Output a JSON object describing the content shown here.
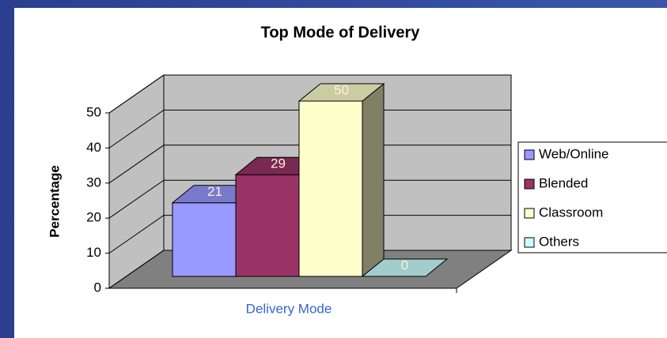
{
  "chart_data": {
    "type": "bar3d",
    "title": "Top Mode of Delivery",
    "y_label": "Percentage",
    "x_label": "Delivery Mode",
    "ylim": [
      0,
      50
    ],
    "yticks": [
      0,
      10,
      20,
      30,
      40,
      50
    ],
    "grid": true,
    "legend": "right",
    "series": [
      {
        "name": "Web/Online",
        "color": "#9999ff",
        "values": [
          21
        ]
      },
      {
        "name": "Blended",
        "color": "#993366",
        "values": [
          29
        ]
      },
      {
        "name": "Classroom",
        "color": "#ffffcc",
        "values": [
          50
        ]
      },
      {
        "name": "Others",
        "color": "#ccffff",
        "values": [
          0
        ]
      }
    ]
  }
}
